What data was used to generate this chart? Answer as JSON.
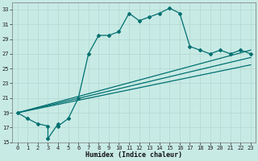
{
  "xlabel": "Humidex (Indice chaleur)",
  "bg_color": "#c8eae5",
  "line_color": "#007070",
  "grid_color": "#b0d8d0",
  "xlim": [
    -0.5,
    23.5
  ],
  "ylim": [
    15,
    34
  ],
  "yticks": [
    15,
    17,
    19,
    21,
    23,
    25,
    27,
    29,
    31,
    33
  ],
  "xticks": [
    0,
    1,
    2,
    3,
    4,
    5,
    6,
    7,
    8,
    9,
    10,
    11,
    12,
    13,
    14,
    15,
    16,
    17,
    18,
    19,
    20,
    21,
    22,
    23
  ],
  "series1_x": [
    0,
    1,
    2,
    3,
    3,
    4,
    4,
    5,
    6,
    7,
    8,
    9,
    10,
    11,
    12,
    13,
    14,
    15,
    16,
    17,
    18,
    19,
    20,
    21,
    22,
    23
  ],
  "series1_y": [
    19,
    18.2,
    17.5,
    17.2,
    15.5,
    17.5,
    17.2,
    18.2,
    21.0,
    27.0,
    29.5,
    29.5,
    30.0,
    32.5,
    31.5,
    32.0,
    32.5,
    33.2,
    32.5,
    28.0,
    27.5,
    27.0,
    27.5,
    27.0,
    27.5,
    27.0
  ],
  "line1_x": [
    0,
    23
  ],
  "line1_y": [
    19.0,
    27.5
  ],
  "line2_x": [
    0,
    23
  ],
  "line2_y": [
    19.0,
    26.5
  ],
  "line3_x": [
    0,
    23
  ],
  "line3_y": [
    19.0,
    25.5
  ],
  "marker": "D",
  "markersize": 2.0,
  "linewidth": 0.9,
  "tick_fontsize": 5.0,
  "xlabel_fontsize": 6.0
}
